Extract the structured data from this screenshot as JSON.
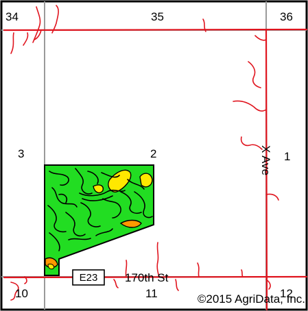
{
  "map": {
    "sections": [
      "34",
      "35",
      "36",
      "3",
      "2",
      "1",
      "10",
      "11",
      "12"
    ],
    "roads": {
      "street": "170th St",
      "avenue": "X Ave",
      "highway_shield": "E23"
    },
    "copyright": "©2015 AgriData, Inc.",
    "colors": {
      "frame": "#000000",
      "section_line": "#9a9a9a",
      "road": "#e0141e",
      "stream": "#e0141e",
      "field_green": "#22dd22",
      "field_yellow": "#ffe800",
      "field_orange": "#ff9900",
      "soil_boundary": "#000000"
    }
  }
}
